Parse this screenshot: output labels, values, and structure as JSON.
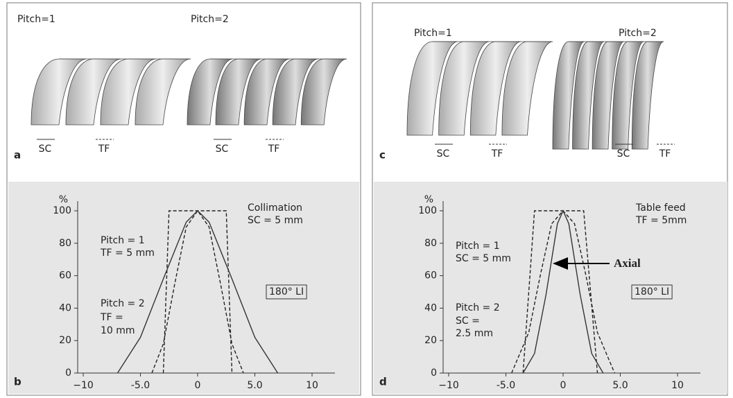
{
  "panels": [
    {
      "letter": "a",
      "left": {
        "title": "Pitch=1",
        "labels": [
          "SC",
          "TF"
        ]
      },
      "right": {
        "title": "Pitch=2",
        "labels": [
          "SC",
          "TF"
        ]
      }
    },
    {
      "letter": "c",
      "left": {
        "title": "Pitch=1",
        "labels": [
          "SC",
          "TF"
        ]
      },
      "right": {
        "title": "Pitch=2",
        "labels": [
          "SC",
          "TF"
        ]
      }
    }
  ],
  "chart_data": [
    {
      "type": "line",
      "letter": "b",
      "y_label": "%",
      "xlim": [
        -10,
        12
      ],
      "ylim": [
        0,
        105
      ],
      "xticks": [
        {
          "value": -10,
          "label": "−10"
        },
        {
          "value": -5,
          "label": "-5.0"
        },
        0,
        {
          "value": 5,
          "label": "5.0"
        },
        10
      ],
      "yticks": [
        0,
        20,
        40,
        60,
        80,
        100
      ],
      "annotations": [
        "Collimation",
        "SC = 5 mm",
        "Pitch = 1",
        "TF = 5 mm",
        "Pitch = 2",
        "TF =",
        "10 mm"
      ],
      "boxed_label": "180° LI",
      "series": [
        {
          "x": [
            -3,
            -2.5,
            2.5,
            3
          ],
          "values": [
            0,
            100,
            100,
            0
          ],
          "color": "#222",
          "dashed": true
        },
        {
          "x": [
            -4,
            -3,
            -2,
            -1,
            0,
            1,
            2,
            3,
            4
          ],
          "values": [
            0,
            18,
            55,
            90,
            100,
            90,
            55,
            18,
            0
          ],
          "color": "#222",
          "dashed": true
        },
        {
          "x": [
            -7,
            -5,
            -3,
            -1,
            0,
            1,
            3,
            5,
            7
          ],
          "values": [
            0,
            22,
            58,
            93,
            100,
            93,
            58,
            22,
            0
          ],
          "color": "#333",
          "dashed": false
        }
      ]
    },
    {
      "type": "line",
      "letter": "d",
      "y_label": "%",
      "xlim": [
        -10,
        12
      ],
      "ylim": [
        0,
        105
      ],
      "xticks": [
        {
          "value": -10,
          "label": "−10"
        },
        {
          "value": -5,
          "label": "-5.0"
        },
        0,
        {
          "value": 5,
          "label": "5.0"
        },
        10
      ],
      "yticks": [
        0,
        20,
        40,
        60,
        80,
        100
      ],
      "annotations": [
        "Table feed",
        "TF = 5mm",
        "Pitch = 1",
        "SC = 5 mm",
        "Pitch = 2",
        "SC =",
        "2.5 mm"
      ],
      "boxed_label": "180° LI",
      "arrow_label": "Axial",
      "series": [
        {
          "x": [
            -3.5,
            -2.5,
            1.8,
            3
          ],
          "values": [
            0,
            100,
            100,
            0
          ],
          "color": "#222",
          "dashed": true
        },
        {
          "x": [
            -4.5,
            -3,
            -2,
            -1,
            0,
            1,
            2,
            3,
            4.5
          ],
          "values": [
            0,
            25,
            60,
            92,
            100,
            92,
            60,
            25,
            0
          ],
          "color": "#222",
          "dashed": true
        },
        {
          "x": [
            -3.5,
            -2.5,
            -1.5,
            -0.5,
            0,
            0.5,
            1.5,
            2.5,
            3.5
          ],
          "values": [
            0,
            12,
            48,
            92,
            100,
            92,
            48,
            12,
            0
          ],
          "color": "#333",
          "dashed": false
        }
      ]
    }
  ]
}
